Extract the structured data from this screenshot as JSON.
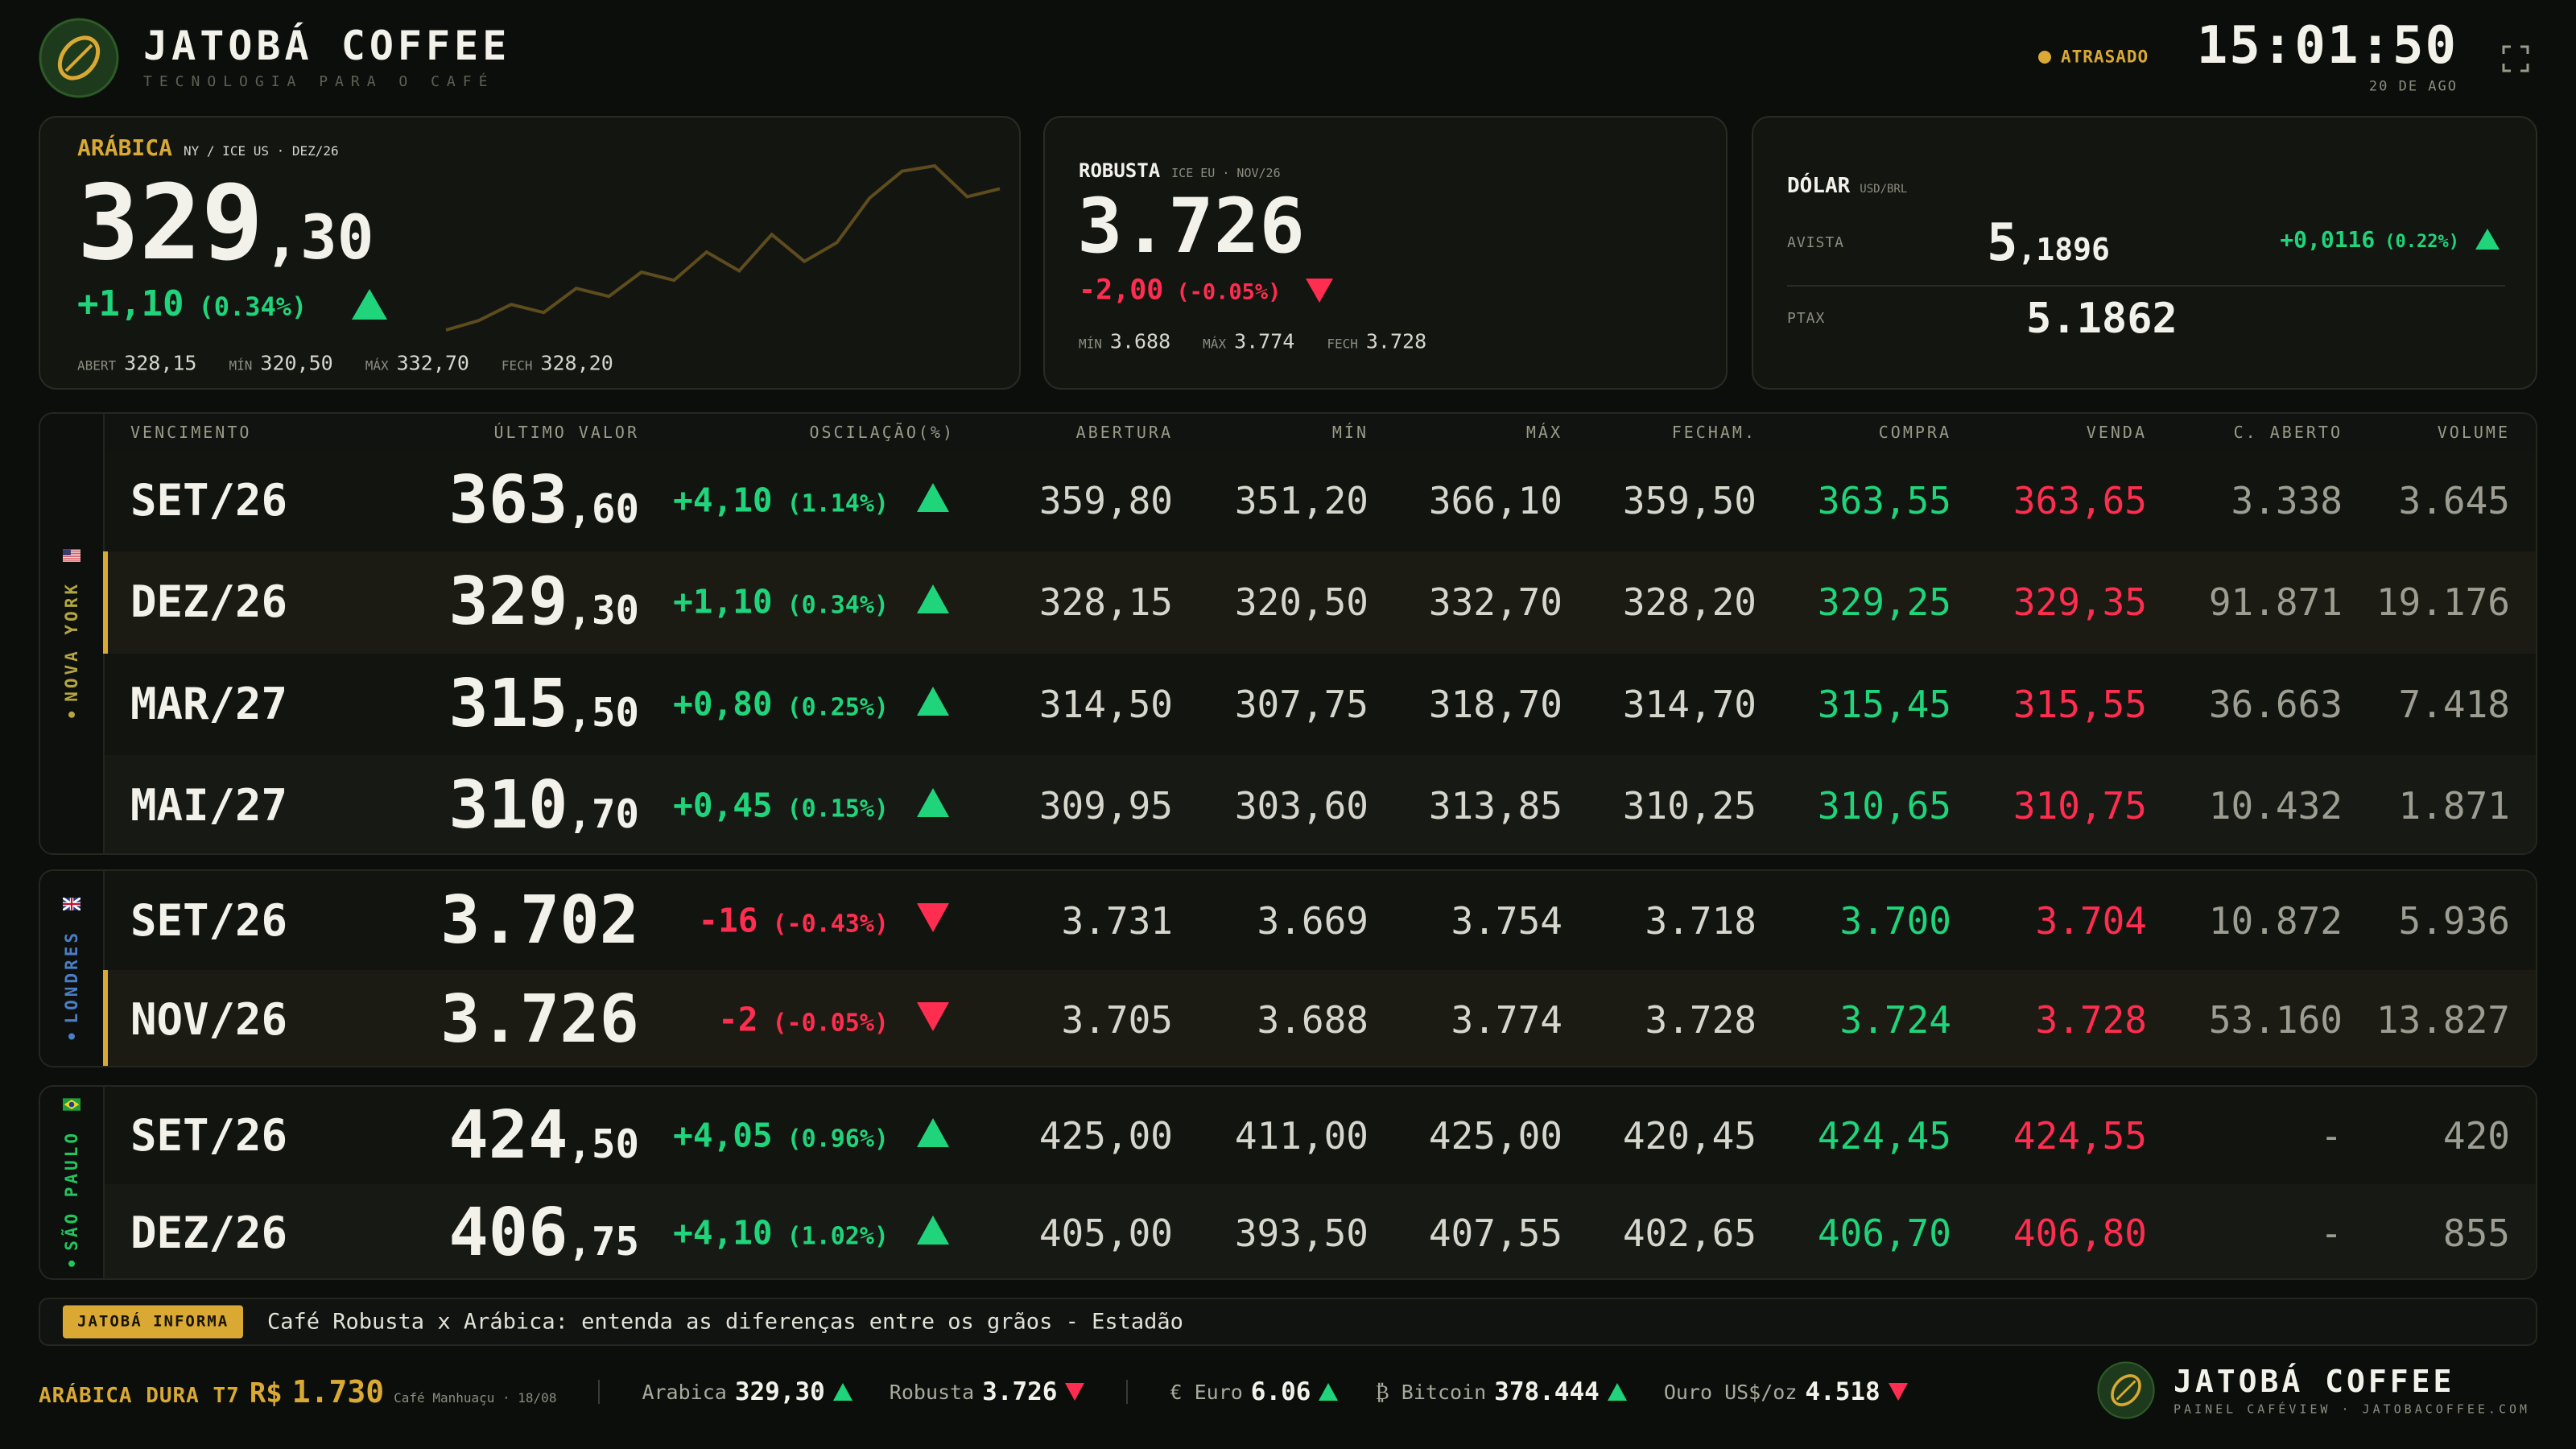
{
  "header": {
    "brand": "JATOBÁ COFFEE",
    "tagline": "TECNOLOGIA PARA O CAFÉ",
    "status": "ATRASADO",
    "time": "15:01:50",
    "date": "20 DE AGO"
  },
  "cards": {
    "arabica": {
      "name": "ARÁBICA",
      "market": "NY / ICE US · DEZ/26",
      "price_int": "329",
      "price_dec": ",30",
      "change": "+1,10",
      "change_pct": "(0.34%)",
      "direction": "up",
      "stats": [
        {
          "label": "ABERT",
          "value": "328,15"
        },
        {
          "label": "MÍN",
          "value": "320,50"
        },
        {
          "label": "MÁX",
          "value": "332,70"
        },
        {
          "label": "FECH",
          "value": "328,20"
        }
      ],
      "sparkline": [
        320.5,
        321.2,
        322.4,
        321.8,
        323.6,
        323.0,
        324.8,
        324.2,
        326.3,
        324.9,
        327.6,
        325.6,
        327.0,
        330.3,
        332.3,
        332.7,
        330.4,
        331.0
      ]
    },
    "robusta": {
      "name": "ROBUSTA",
      "market": "ICE EU · NOV/26",
      "price": "3.726",
      "change": "-2,00",
      "change_pct": "(-0.05%)",
      "direction": "down",
      "stats": [
        {
          "label": "MÍN",
          "value": "3.688"
        },
        {
          "label": "MÁX",
          "value": "3.774"
        },
        {
          "label": "FECH",
          "value": "3.728"
        }
      ]
    },
    "dollar": {
      "name": "DÓLAR",
      "pair": "USD/BRL",
      "spot_label": "AVISTA",
      "spot_int": "5",
      "spot_dec": ",1896",
      "change": "+0,0116",
      "change_pct": "(0.22%)",
      "direction": "up",
      "ptax_label": "PTAX",
      "ptax": "5.1862"
    }
  },
  "table": {
    "columns": [
      "VENCIMENTO",
      "ÚLTIMO VALOR",
      "OSCILAÇÃO(%)",
      "ABERTURA",
      "MÍN",
      "MÁX",
      "FECHAM.",
      "COMPRA",
      "VENDA",
      "C. ABERTO",
      "VOLUME"
    ],
    "groups": [
      {
        "name": "NOVA YORK",
        "color": "#b3a640",
        "rows": [
          {
            "contract": "SET/26",
            "last_int": "363",
            "last_dec": ",60",
            "change": "+4,10",
            "change_pct": "(1.14%)",
            "direction": "up",
            "open": "359,80",
            "min": "351,20",
            "max": "366,10",
            "close": "359,50",
            "buy": "363,55",
            "sell": "363,65",
            "open_interest": "3.338",
            "volume": "3.645"
          },
          {
            "contract": "DEZ/26",
            "last_int": "329",
            "last_dec": ",30",
            "change": "+1,10",
            "change_pct": "(0.34%)",
            "direction": "up",
            "open": "328,15",
            "min": "320,50",
            "max": "332,70",
            "close": "328,20",
            "buy": "329,25",
            "sell": "329,35",
            "open_interest": "91.871",
            "volume": "19.176",
            "active": true
          },
          {
            "contract": "MAR/27",
            "last_int": "315",
            "last_dec": ",50",
            "change": "+0,80",
            "change_pct": "(0.25%)",
            "direction": "up",
            "open": "314,50",
            "min": "307,75",
            "max": "318,70",
            "close": "314,70",
            "buy": "315,45",
            "sell": "315,55",
            "open_interest": "36.663",
            "volume": "7.418"
          },
          {
            "contract": "MAI/27",
            "last_int": "310",
            "last_dec": ",70",
            "change": "+0,45",
            "change_pct": "(0.15%)",
            "direction": "up",
            "open": "309,95",
            "min": "303,60",
            "max": "313,85",
            "close": "310,25",
            "buy": "310,65",
            "sell": "310,75",
            "open_interest": "10.432",
            "volume": "1.871"
          }
        ]
      },
      {
        "name": "LONDRES",
        "color": "#4a7fc4",
        "rows": [
          {
            "contract": "SET/26",
            "last_int": "3.702",
            "change": "-16",
            "change_pct": "(-0.43%)",
            "direction": "down",
            "open": "3.731",
            "min": "3.669",
            "max": "3.754",
            "close": "3.718",
            "buy": "3.700",
            "sell": "3.704",
            "open_interest": "10.872",
            "volume": "5.936"
          },
          {
            "contract": "NOV/26",
            "last_int": "3.726",
            "change": "-2",
            "change_pct": "(-0.05%)",
            "direction": "down",
            "open": "3.705",
            "min": "3.688",
            "max": "3.774",
            "close": "3.728",
            "buy": "3.724",
            "sell": "3.728",
            "open_interest": "53.160",
            "volume": "13.827",
            "active": true
          }
        ]
      },
      {
        "name": "SÃO PAULO",
        "color": "#22c55e",
        "rows": [
          {
            "contract": "SET/26",
            "last_int": "424",
            "last_dec": ",50",
            "change": "+4,05",
            "change_pct": "(0.96%)",
            "direction": "up",
            "open": "425,00",
            "min": "411,00",
            "max": "425,00",
            "close": "420,45",
            "buy": "424,45",
            "sell": "424,55",
            "open_interest": "-",
            "volume": "420"
          },
          {
            "contract": "DEZ/26",
            "last_int": "406",
            "last_dec": ",75",
            "change": "+4,10",
            "change_pct": "(1.02%)",
            "direction": "up",
            "open": "405,00",
            "min": "393,50",
            "max": "407,55",
            "close": "402,65",
            "buy": "406,70",
            "sell": "406,80",
            "open_interest": "-",
            "volume": "855"
          }
        ]
      }
    ]
  },
  "news": {
    "label": "JATOBÁ INFORMA",
    "text": "Café Robusta x Arábica: entenda as diferenças entre os grãos - Estadão"
  },
  "footer": {
    "local": {
      "name": "ARÁBICA DURA T7",
      "currency": "R$",
      "price": "1.730",
      "source": "Café Manhuaçu · 18/08"
    },
    "ticker_groups": [
      [
        {
          "name": "Arabica",
          "value": "329,30",
          "direction": "up"
        },
        {
          "name": "Robusta",
          "value": "3.726",
          "direction": "down"
        }
      ],
      [
        {
          "name": "€ Euro",
          "value": "6.06",
          "direction": "up"
        },
        {
          "name": "₿ Bitcoin",
          "value": "378.444",
          "direction": "up"
        },
        {
          "name": "Ouro US$/oz",
          "value": "4.518",
          "direction": "down"
        }
      ]
    ],
    "brand": "JATOBÁ COFFEE",
    "brand_sub": "PAINEL CAFÉVIEW · JATOBACOFFEE.COM"
  }
}
